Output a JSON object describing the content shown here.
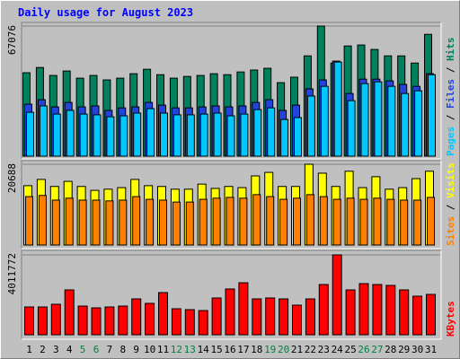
{
  "chart_data": [
    {
      "type": "bar",
      "title": "Daily usage for August 2023",
      "legend_separator": " / ",
      "ylim": [
        0,
        67076
      ],
      "yticks": [
        67076
      ],
      "series": [
        {
          "name": "Hits",
          "color": "#00805c",
          "values": [
            43000,
            45700,
            41600,
            43900,
            40200,
            41600,
            39300,
            40200,
            42500,
            44800,
            42000,
            40200,
            41100,
            41600,
            42500,
            42000,
            43400,
            44400,
            45300,
            37900,
            40700,
            51700,
            67076,
            48000,
            56800,
            57300,
            55000,
            51700,
            51700,
            48000,
            62800
          ]
        },
        {
          "name": "Files",
          "color": "#2244dd",
          "values": [
            26800,
            29100,
            25400,
            27700,
            25400,
            25900,
            23600,
            24900,
            25400,
            27700,
            26300,
            24900,
            24900,
            25400,
            25900,
            25400,
            25900,
            27700,
            29100,
            23600,
            26300,
            34700,
            39300,
            49000,
            32300,
            39700,
            39700,
            38800,
            37000,
            36000,
            42500
          ]
        },
        {
          "name": "Pages",
          "color": "#00c8ff",
          "values": [
            22600,
            25900,
            21700,
            23600,
            21700,
            21300,
            20300,
            20800,
            22200,
            24500,
            22200,
            21300,
            21300,
            21700,
            22200,
            20800,
            21700,
            24000,
            24900,
            18900,
            19900,
            31000,
            36000,
            48500,
            28600,
            37400,
            38300,
            36000,
            32300,
            33700,
            42000
          ]
        }
      ]
    },
    {
      "type": "bar",
      "legend_separator": " / ",
      "ylim": [
        0,
        20688
      ],
      "yticks": [
        20688
      ],
      "series": [
        {
          "name": "Visits",
          "color": "#ffff00",
          "values": [
            15200,
            16800,
            15000,
            16300,
            15000,
            14000,
            14300,
            14700,
            16800,
            15200,
            15000,
            14300,
            14300,
            15600,
            14500,
            15000,
            14700,
            17700,
            18600,
            15000,
            15000,
            20688,
            18400,
            15000,
            18900,
            14700,
            17500,
            14300,
            14700,
            17000,
            18900
          ]
        },
        {
          "name": "Sites",
          "color": "#ff8000",
          "values": [
            12400,
            12700,
            11500,
            12000,
            11500,
            11500,
            11300,
            11500,
            12400,
            11700,
            11500,
            11000,
            11000,
            11700,
            12000,
            12200,
            12000,
            12900,
            12400,
            11700,
            12000,
            12900,
            12400,
            11700,
            12000,
            11700,
            12000,
            11700,
            11500,
            11500,
            12200
          ]
        }
      ]
    },
    {
      "type": "bar",
      "ylim": [
        0,
        4011772
      ],
      "yticks": [
        4011772
      ],
      "categories": [
        "1",
        "2",
        "3",
        "4",
        "5",
        "6",
        "7",
        "8",
        "9",
        "10",
        "11",
        "12",
        "13",
        "14",
        "15",
        "16",
        "17",
        "18",
        "19",
        "20",
        "21",
        "22",
        "23",
        "24",
        "25",
        "26",
        "27",
        "28",
        "29",
        "30",
        "31"
      ],
      "category_colors": [
        "#000000",
        "#000000",
        "#000000",
        "#000000",
        "#008040",
        "#008040",
        "#000000",
        "#000000",
        "#000000",
        "#000000",
        "#000000",
        "#008040",
        "#008040",
        "#000000",
        "#000000",
        "#000000",
        "#000000",
        "#000000",
        "#008040",
        "#008040",
        "#000000",
        "#000000",
        "#000000",
        "#000000",
        "#000000",
        "#008040",
        "#008040",
        "#000000",
        "#000000",
        "#000000",
        "#000000"
      ],
      "series": [
        {
          "name": "KBytes",
          "color": "#ff0000",
          "values": [
            1397000,
            1397000,
            1533000,
            2254000,
            1442000,
            1352000,
            1397000,
            1442000,
            1803000,
            1578000,
            2119000,
            1307000,
            1262000,
            1217000,
            1848000,
            2299000,
            2614000,
            1803000,
            1848000,
            1803000,
            1488000,
            1803000,
            2524000,
            4011772,
            2254000,
            2569000,
            2524000,
            2479000,
            2254000,
            1938000,
            2028000
          ]
        }
      ]
    }
  ]
}
